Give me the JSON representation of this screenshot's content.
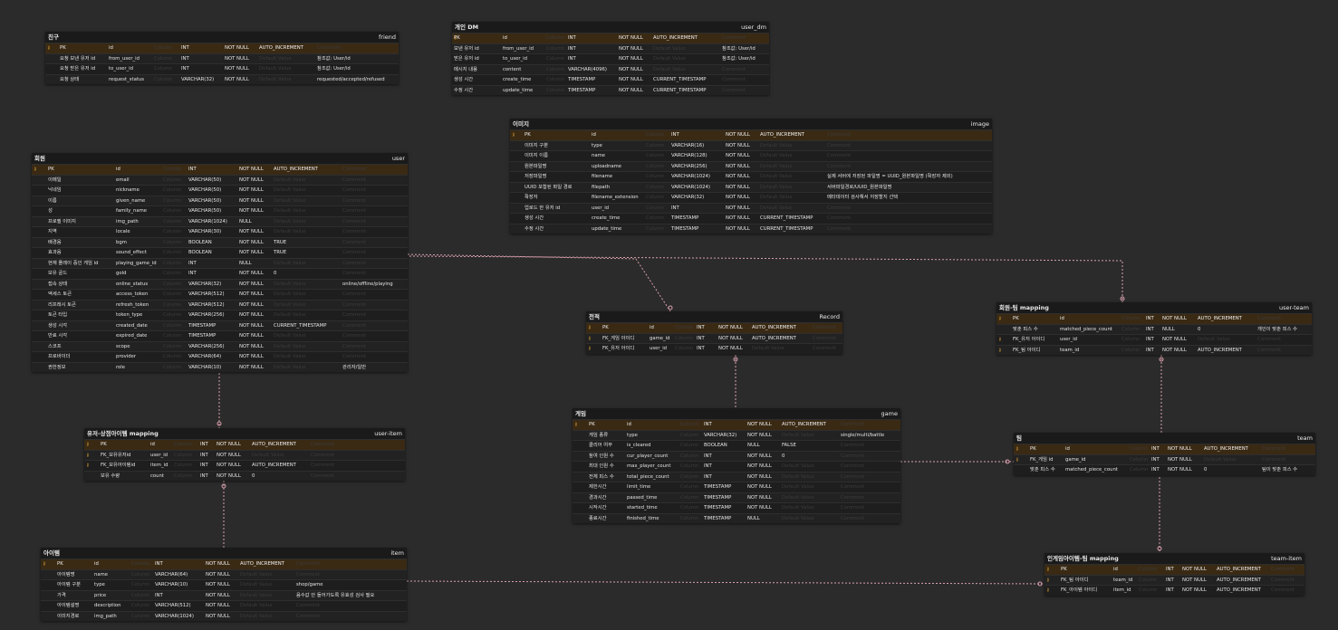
{
  "colors": {
    "background": "#2b2b2b",
    "link": "#d9a0ad",
    "pk_row": "#3a2a14",
    "key_icon": "#e8a838"
  },
  "tables": [
    {
      "id": "friend",
      "title": "친구",
      "name": "friend",
      "rows": [
        [
          "PK",
          "id",
          "Column",
          "INT",
          "NOT NULL",
          "AUTO_INCREMENT",
          "Comment"
        ],
        [
          "요청 보낸 유저 id",
          "from_user_id",
          "Column",
          "INT",
          "NOT NULL",
          "Default Value",
          "참조값: User/id"
        ],
        [
          "요청 받은 유저 id",
          "to_user_id",
          "Column",
          "INT",
          "NOT NULL",
          "Default Value",
          "참조값: User/id"
        ],
        [
          "요청 상태",
          "request_status",
          "Column",
          "VARCHAR(32)",
          "NOT NULL",
          "Default Value",
          "requested/accepted/refused"
        ]
      ]
    },
    {
      "id": "user_dm",
      "title": "개인 DM",
      "name": "user_dm",
      "rows": [
        [
          "PK",
          "id",
          "Column",
          "INT",
          "NOT NULL",
          "AUTO_INCREMENT",
          "Comment"
        ],
        [
          "보낸 유저 id",
          "from_user_id",
          "Column",
          "INT",
          "NOT NULL",
          "Default Value",
          "참조값: User/id"
        ],
        [
          "받은 유저 id",
          "to_user_id",
          "Column",
          "INT",
          "NOT NULL",
          "Default Value",
          "참조값: User/id"
        ],
        [
          "메시지 내용",
          "content",
          "Column",
          "VARCHAR(4096)",
          "NOT NULL",
          "Default Value",
          "Comment"
        ],
        [
          "생성 시간",
          "create_time",
          "Column",
          "TIMESTAMP",
          "NOT NULL",
          "CURRENT_TIMESTAMP",
          "Comment"
        ],
        [
          "수정 시간",
          "update_time",
          "Column",
          "TIMESTAMP",
          "NOT NULL",
          "CURRENT_TIMESTAMP",
          "Comment"
        ]
      ]
    },
    {
      "id": "image",
      "title": "이미지",
      "name": "image",
      "rows": [
        [
          "PK",
          "id",
          "Column",
          "INT",
          "NOT NULL",
          "AUTO_INCREMENT",
          "Comment"
        ],
        [
          "이미지 구분",
          "type",
          "Column",
          "VARCHAR(16)",
          "NOT NULL",
          "Default Value",
          "Comment"
        ],
        [
          "이미지 이름",
          "name",
          "Column",
          "VARCHAR(128)",
          "NOT NULL",
          "Default Value",
          "Comment"
        ],
        [
          "원본파일명",
          "uploadname",
          "Column",
          "VARCHAR(256)",
          "NOT NULL",
          "Default Value",
          "Comment"
        ],
        [
          "저장파일명",
          "filename",
          "Column",
          "VARCHAR(1024)",
          "NOT NULL",
          "Default Value",
          "실제 서버에 저장된 파일명 = UUID_원본파일명 (확장자 제외)"
        ],
        [
          "UUID 포함된 파일 경로",
          "filepath",
          "Column",
          "VARCHAR(1024)",
          "NOT NULL",
          "Default Value",
          "서버파일경로/UUID_원본파일명"
        ],
        [
          "확장자",
          "filename_extension",
          "Column",
          "VARCHAR(32)",
          "NOT NULL",
          "Default Value",
          "메타데이터 검사해서 저장할지 선택"
        ],
        [
          "업로드 한 유저 id",
          "user_id",
          "Column",
          "INT",
          "NOT NULL",
          "Default Value",
          "Comment"
        ],
        [
          "생성 시간",
          "create_time",
          "Column",
          "TIMESTAMP",
          "NOT NULL",
          "CURRENT_TIMESTAMP",
          "Comment"
        ],
        [
          "수정 시간",
          "update_time",
          "Column",
          "TIMESTAMP",
          "NOT NULL",
          "CURRENT_TIMESTAMP",
          "Comment"
        ]
      ]
    },
    {
      "id": "user",
      "title": "회원",
      "name": "user",
      "rows": [
        [
          "PK",
          "id",
          "Column",
          "INT",
          "NOT NULL",
          "AUTO_INCREMENT",
          "Comment"
        ],
        [
          "이메일",
          "email",
          "Column",
          "VARCHAR(50)",
          "NOT NULL",
          "Default Value",
          "Comment"
        ],
        [
          "닉네임",
          "nickname",
          "Column",
          "VARCHAR(50)",
          "NOT NULL",
          "Default Value",
          "Comment"
        ],
        [
          "이름",
          "given_name",
          "Column",
          "VARCHAR(50)",
          "NOT NULL",
          "Default Value",
          "Comment"
        ],
        [
          "성",
          "family_name",
          "Column",
          "VARCHAR(50)",
          "NOT NULL",
          "Default Value",
          "Comment"
        ],
        [
          "프로필 이미지",
          "img_path",
          "Column",
          "VARCHAR(1024)",
          "NULL",
          "Default Value",
          "Comment"
        ],
        [
          "지역",
          "locale",
          "Column",
          "VARCHAR(30)",
          "NOT NULL",
          "Default Value",
          "Comment"
        ],
        [
          "배경음",
          "bgm",
          "Column",
          "BOOLEAN",
          "NOT NULL",
          "TRUE",
          "Comment"
        ],
        [
          "효과음",
          "sound_effect",
          "Column",
          "BOOLEAN",
          "NOT NULL",
          "TRUE",
          "Comment"
        ],
        [
          "현재 플레이 중인 게임 id",
          "playing_game_id",
          "Column",
          "INT",
          "NULL",
          "Default Value",
          "Comment"
        ],
        [
          "보유 골드",
          "gold",
          "Column",
          "INT",
          "NOT NULL",
          "0",
          "Comment"
        ],
        [
          "접속 상태",
          "online_status",
          "Column",
          "VARCHAR(32)",
          "NOT NULL",
          "Default Value",
          "online/offline/playing"
        ],
        [
          "엑세스 토큰",
          "access_token",
          "Column",
          "VARCHAR(512)",
          "NOT NULL",
          "Default Value",
          "Comment"
        ],
        [
          "리프레시 토큰",
          "refresh_token",
          "Column",
          "VARCHAR(512)",
          "NOT NULL",
          "Default Value",
          "Comment"
        ],
        [
          "토큰 타입",
          "token_type",
          "Column",
          "VARCHAR(256)",
          "NOT NULL",
          "Default Value",
          "Comment"
        ],
        [
          "생성 시각",
          "created_date",
          "Column",
          "TIMESTAMP",
          "NOT NULL",
          "CURRENT_TIMESTAMP",
          "Comment"
        ],
        [
          "만료 시각",
          "expired_date",
          "Column",
          "TIMESTAMP",
          "NOT NULL",
          "Default Value",
          "Comment"
        ],
        [
          "스코프",
          "scope",
          "Column",
          "VARCHAR(256)",
          "NOT NULL",
          "Default Value",
          "Comment"
        ],
        [
          "프로바이더",
          "provider",
          "Column",
          "VARCHAR(64)",
          "NOT NULL",
          "Default Value",
          "Comment"
        ],
        [
          "권한정보",
          "role",
          "Column",
          "VARCHAR(10)",
          "NOT NULL",
          "Default Value",
          "관리자/일반"
        ]
      ]
    },
    {
      "id": "record",
      "title": "전적",
      "name": "Record",
      "rows": [
        [
          "PK",
          "id",
          "Column",
          "INT",
          "NOT NULL",
          "AUTO_INCREMENT",
          "Comment"
        ],
        [
          "FK_게임 아이디",
          "game_id",
          "Column",
          "INT",
          "NOT NULL",
          "AUTO_INCREMENT",
          "Comment"
        ],
        [
          "FK_유저 아이디",
          "user_id",
          "Column",
          "INT",
          "NOT NULL",
          "Default Value",
          "Comment"
        ]
      ]
    },
    {
      "id": "user_team",
      "title": "회원-팀 mapping",
      "name": "user-team",
      "rows": [
        [
          "PK",
          "id",
          "Column",
          "INT",
          "NOT NULL",
          "AUTO_INCREMENT",
          "Comment"
        ],
        [
          "맞춘 피스 수",
          "matched_piece_count",
          "Column",
          "INT",
          "NULL",
          "0",
          "개인이 맞춘 피스 수"
        ],
        [
          "FK_유저 아이디",
          "user_id",
          "Column",
          "INT",
          "NOT NULL",
          "Default Value",
          "Comment"
        ],
        [
          "FK_팀 아이디",
          "team_id",
          "Column",
          "INT",
          "NOT NULL",
          "AUTO_INCREMENT",
          "Comment"
        ]
      ]
    },
    {
      "id": "user_item",
      "title": "유저-상점아이템 mapping",
      "name": "user-item",
      "rows": [
        [
          "PK",
          "id",
          "Column",
          "INT",
          "NOT NULL",
          "AUTO_INCREMENT",
          "Comment"
        ],
        [
          "FK_보유유저id",
          "user_id",
          "Column",
          "INT",
          "NOT NULL",
          "Default Value",
          "Comment"
        ],
        [
          "FK_보유아이템id",
          "item_id",
          "Column",
          "INT",
          "NOT NULL",
          "AUTO_INCREMENT",
          "Comment"
        ],
        [
          "보유 수량",
          "count",
          "Column",
          "INT",
          "NOT NULL",
          "0",
          "Comment"
        ]
      ]
    },
    {
      "id": "game",
      "title": "게임",
      "name": "game",
      "rows": [
        [
          "PK",
          "id",
          "Column",
          "INT",
          "NOT NULL",
          "AUTO_INCREMENT",
          "Comment"
        ],
        [
          "게임 종류",
          "type",
          "Column",
          "VARCHAR(32)",
          "NOT NULL",
          "Default Value",
          "single/multi/battle"
        ],
        [
          "클리어 여부",
          "is_cleared",
          "Column",
          "BOOLEAN",
          "NULL",
          "FALSE",
          "Comment"
        ],
        [
          "참여 인원 수",
          "cur_player_count",
          "Column",
          "INT",
          "NOT NULL",
          "0",
          "Comment"
        ],
        [
          "최대 인원 수",
          "max_player_count",
          "Column",
          "INT",
          "NOT NULL",
          "Default Value",
          "Comment"
        ],
        [
          "전체 피스 수",
          "total_piece_count",
          "Column",
          "INT",
          "NOT NULL",
          "Default Value",
          "Comment"
        ],
        [
          "제한시간",
          "limit_time",
          "Column",
          "TIMESTAMP",
          "NOT NULL",
          "Default Value",
          "Comment"
        ],
        [
          "경과시간",
          "passed_time",
          "Column",
          "TIMESTAMP",
          "NOT NULL",
          "Default Value",
          "Comment"
        ],
        [
          "시작시간",
          "started_time",
          "Column",
          "TIMESTAMP",
          "NOT NULL",
          "Default Value",
          "Comment"
        ],
        [
          "종료시간",
          "finished_time",
          "Column",
          "TIMESTAMP",
          "NULL",
          "Default Value",
          "Comment"
        ]
      ]
    },
    {
      "id": "team",
      "title": "팀",
      "name": "team",
      "rows": [
        [
          "PK",
          "id",
          "Column",
          "INT",
          "NOT NULL",
          "AUTO_INCREMENT",
          "Comment"
        ],
        [
          "FK_게임 id",
          "game_id",
          "Column",
          "INT",
          "NOT NULL",
          "Default Value",
          "Comment"
        ],
        [
          "맞춘 피스 수",
          "matched_piece_count",
          "Column",
          "INT",
          "NOT NULL",
          "0",
          "팀이 맞춘 피스 수"
        ]
      ]
    },
    {
      "id": "item",
      "title": "아이템",
      "name": "item",
      "rows": [
        [
          "PK",
          "id",
          "Column",
          "INT",
          "NOT NULL",
          "AUTO_INCREMENT",
          "Comment"
        ],
        [
          "아이템명",
          "name",
          "Column",
          "VARCHAR(64)",
          "NOT NULL",
          "Default Value",
          "Comment"
        ],
        [
          "아이템 구분",
          "type",
          "Column",
          "VARCHAR(10)",
          "NOT NULL",
          "Default Value",
          "shop/game"
        ],
        [
          "가격",
          "price",
          "Column",
          "INT",
          "NOT NULL",
          "Default Value",
          "음수값 안 들어가도록 유효성 검사 필요"
        ],
        [
          "아이템설명",
          "description",
          "Column",
          "VARCHAR(512)",
          "NOT NULL",
          "Default Value",
          "Comment"
        ],
        [
          "이미지경로",
          "img_path",
          "Column",
          "VARCHAR(1024)",
          "NOT NULL",
          "Default Value",
          "Comment"
        ]
      ]
    },
    {
      "id": "team_item",
      "title": "인게임아이템-팀 mapping",
      "name": "team-item",
      "rows": [
        [
          "PK",
          "id",
          "Column",
          "INT",
          "NOT NULL",
          "AUTO_INCREMENT",
          "Comment"
        ],
        [
          "FK_팀 아이디",
          "team_id",
          "Column",
          "INT",
          "NOT NULL",
          "AUTO_INCREMENT",
          "Comment"
        ],
        [
          "FK_아이템 아이디",
          "item_id",
          "Column",
          "INT",
          "NOT NULL",
          "AUTO_INCREMENT",
          "Comment"
        ]
      ]
    }
  ]
}
